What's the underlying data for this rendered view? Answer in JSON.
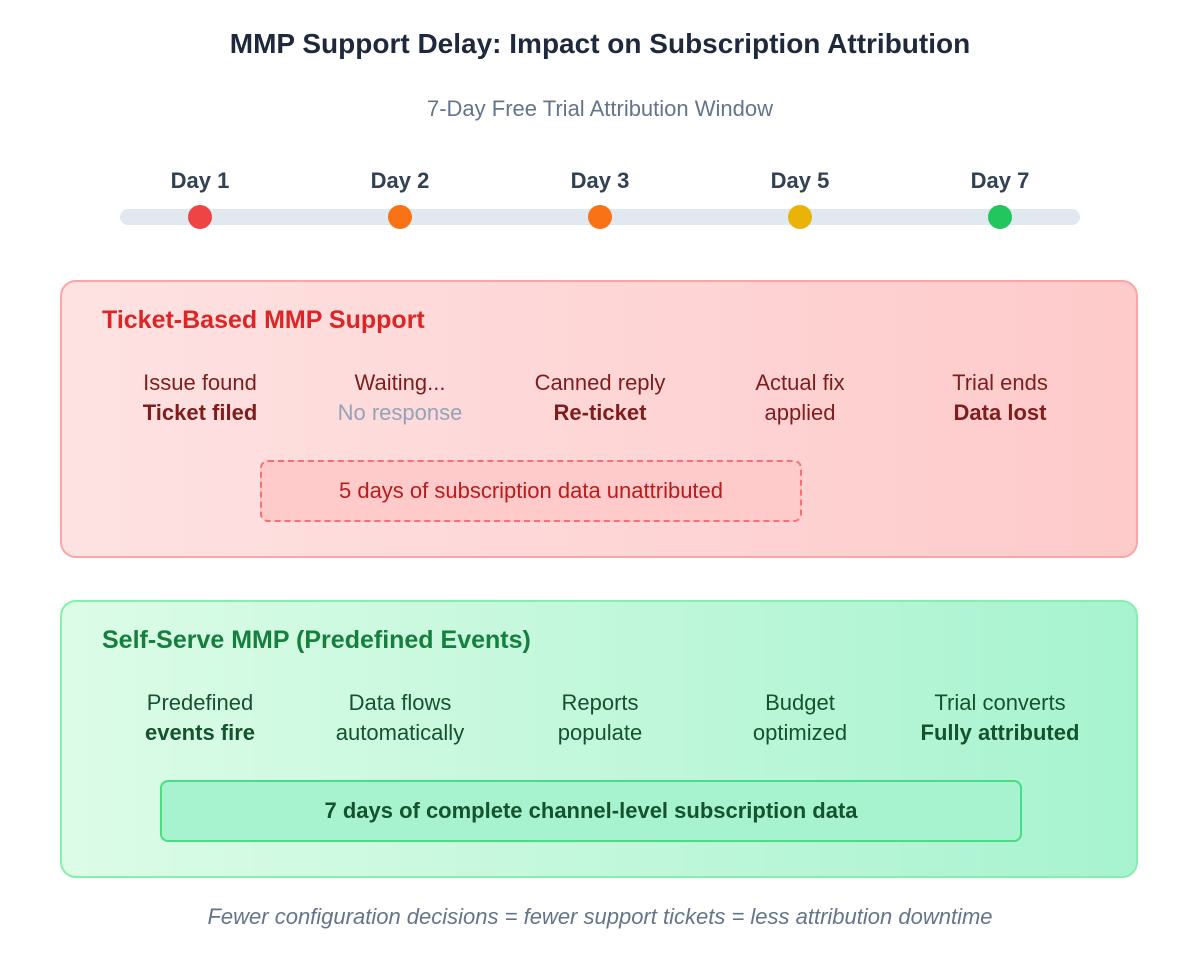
{
  "title": "MMP Support Delay: Impact on Subscription Attribution",
  "subtitle": "7-Day Free Trial Attribution Window",
  "timeline": {
    "days": [
      {
        "label": "Day 1",
        "color": "#ef4444"
      },
      {
        "label": "Day 2",
        "color": "#f97316"
      },
      {
        "label": "Day 3",
        "color": "#f97316"
      },
      {
        "label": "Day 5",
        "color": "#eab308"
      },
      {
        "label": "Day 7",
        "color": "#22c55e"
      }
    ]
  },
  "ticket_panel": {
    "title": "Ticket-Based MMP Support",
    "steps": [
      {
        "line1": "Issue found",
        "line2": "Ticket filed",
        "style": "bold"
      },
      {
        "line1": "Waiting...",
        "line2": "No response",
        "style": "muted"
      },
      {
        "line1": "Canned reply",
        "line2": "Re-ticket",
        "style": "bold"
      },
      {
        "line1": "Actual fix",
        "line2": "applied",
        "style": "normal"
      },
      {
        "line1": "Trial ends",
        "line2": "Data lost",
        "style": "bold"
      }
    ],
    "callout": "5 days of subscription data unattributed"
  },
  "selfserve_panel": {
    "title": "Self-Serve MMP (Predefined Events)",
    "steps": [
      {
        "line1": "Predefined",
        "line2": "events fire",
        "style": "bold"
      },
      {
        "line1": "Data flows",
        "line2": "automatically",
        "style": "normal"
      },
      {
        "line1": "Reports",
        "line2": "populate",
        "style": "normal"
      },
      {
        "line1": "Budget",
        "line2": "optimized",
        "style": "normal"
      },
      {
        "line1": "Trial converts",
        "line2": "Fully attributed",
        "style": "bold"
      }
    ],
    "callout": "7 days of complete channel-level subscription data"
  },
  "footer": "Fewer configuration decisions = fewer support tickets = less attribution downtime"
}
